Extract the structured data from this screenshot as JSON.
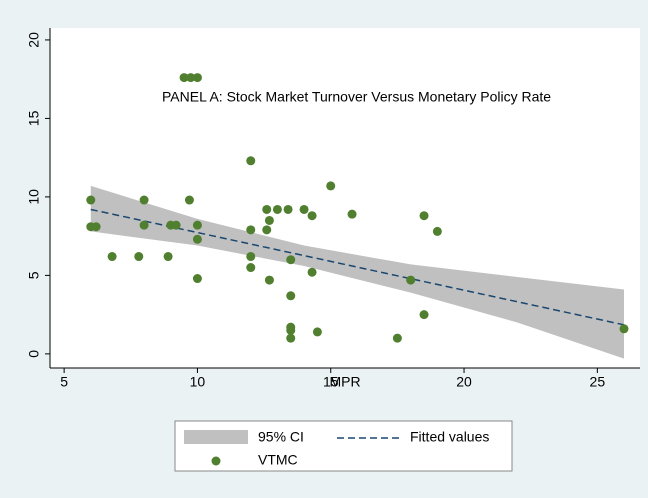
{
  "chart_data": {
    "type": "scatter",
    "annotation": "PANEL A: Stock Market Turnover Versus Monetary Policy Rate",
    "x_label": "MPR",
    "xlim": [
      4.47,
      26.6
    ],
    "ylim": [
      -0.9,
      20.76
    ],
    "xticks": [
      5,
      10,
      15,
      20,
      25
    ],
    "yticks": [
      0,
      5,
      10,
      15,
      20
    ],
    "series": [
      {
        "name": "95% CI",
        "color": "#c0c0c0",
        "x": [
          6,
          10,
          14,
          18,
          22,
          26
        ],
        "upper": [
          10.7,
          8.6,
          6.9,
          5.7,
          4.9,
          4.1
        ],
        "lower": [
          7.8,
          6.9,
          5.6,
          3.9,
          2.0,
          -0.3
        ]
      },
      {
        "name": "Fitted values",
        "color": "#1a476f",
        "x": [
          6,
          26
        ],
        "values": [
          9.2,
          1.85
        ]
      },
      {
        "name": "VTMC",
        "color": "#4f7f2f",
        "x": [
          6,
          6,
          6.2,
          6.8,
          7.8,
          8,
          8,
          9,
          9.2,
          8.9,
          9.5,
          9.75,
          10,
          9.7,
          10,
          10,
          10,
          12,
          12,
          12,
          12,
          12.6,
          12.6,
          12.7,
          12.7,
          13,
          13.4,
          13.5,
          13.5,
          13.5,
          13.5,
          13.5,
          14,
          14.3,
          14.3,
          14.5,
          15,
          15.8,
          17.5,
          18,
          18.5,
          18.5,
          19,
          26
        ],
        "values": [
          9.8,
          8.1,
          8.1,
          6.2,
          6.2,
          9.8,
          8.2,
          8.2,
          8.2,
          6.2,
          17.6,
          17.6,
          17.6,
          9.8,
          8.2,
          7.3,
          4.8,
          12.3,
          7.9,
          6.2,
          5.5,
          9.2,
          7.9,
          8.5,
          4.7,
          9.2,
          9.2,
          6.0,
          3.7,
          1.7,
          1.5,
          1.0,
          9.2,
          8.8,
          5.2,
          1.4,
          10.7,
          8.9,
          1.0,
          4.7,
          8.8,
          2.5,
          7.8,
          1.6
        ]
      }
    ]
  }
}
